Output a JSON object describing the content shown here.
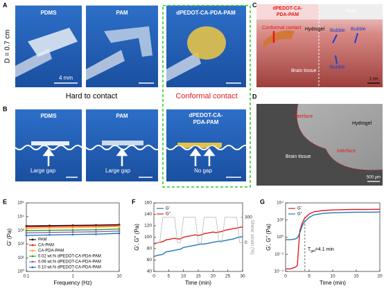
{
  "panel_labels": [
    "A",
    "B",
    "C",
    "D",
    "E",
    "F",
    "G"
  ],
  "panel_a": {
    "axis_label": "D = 0.7 cm",
    "photos": [
      "PDMS",
      "PAM",
      "dPEDOT-CA-PDA-PAM"
    ],
    "scale": "4 mm",
    "left_caption": "Hard to contact",
    "right_caption": "Conformal contact"
  },
  "panel_b": {
    "photos": [
      {
        "title_lines": [
          "PDMS"
        ],
        "caption": "Large gap"
      },
      {
        "title_lines": [
          "PAM"
        ],
        "caption": "Large gap"
      },
      {
        "title_lines": [
          "dPEDOT-CA-",
          "PDA-PAM"
        ],
        "caption": "No gap"
      }
    ]
  },
  "panel_c": {
    "left_header": [
      "dPEDOT-CA-",
      "PDA-PAM"
    ],
    "right_header": "PAM",
    "labels": [
      "Conformal contact",
      "Hydrogel",
      "Bubble",
      "Bubble",
      "Bubble",
      "Brain tissue"
    ],
    "scale": "1 cm"
  },
  "panel_d": {
    "labels": [
      "Interface",
      "Hydrogel",
      "Brain tissue",
      "Interface"
    ],
    "scale": "500 μm"
  },
  "chart_data": [
    {
      "type": "line",
      "xlabel": "Frequency (Hz)",
      "ylabel": "G' (Pa)",
      "xscale": "log",
      "yscale": "log",
      "markers": true,
      "x": [
        0.1,
        0.316,
        1,
        3.16,
        10
      ],
      "xlim": [
        0.1,
        10
      ],
      "xticks": [
        0.1,
        1,
        10
      ],
      "ylim": [
        1,
        100000
      ],
      "yticks": [
        {
          "value": 1,
          "label": "10⁰"
        },
        {
          "value": 10,
          "label": "10¹"
        },
        {
          "value": 100,
          "label": "10²"
        },
        {
          "value": 1000,
          "label": "10³"
        },
        {
          "value": 10000,
          "label": "10⁴"
        },
        {
          "value": 100000,
          "label": "10⁵"
        }
      ],
      "legend": "bottom-left",
      "series": [
        {
          "name": "PAM",
          "color": "#111111",
          "values": [
            2100,
            2200,
            2300,
            2400,
            2600
          ]
        },
        {
          "name": "CA-PAM",
          "color": "#e41a1c",
          "values": [
            1800,
            1900,
            2000,
            2100,
            2300
          ]
        },
        {
          "name": "CA-PDA-PAM",
          "color": "#f5a623",
          "values": [
            1400,
            1500,
            1600,
            1700,
            1900
          ]
        },
        {
          "name": "0.02 wt.% dPEDOT-CA-PDA-PAM",
          "color": "#2ca02c",
          "values": [
            950,
            1000,
            1050,
            1100,
            1250
          ]
        },
        {
          "name": "0.06 wt.% dPEDOT-CA-PDA-PAM",
          "color": "#9b59b6",
          "values": [
            650,
            700,
            740,
            780,
            880
          ]
        },
        {
          "name": "0.10 wt.% dPEDOT-CA-PDA-PAM",
          "color": "#1f77b4",
          "values": [
            430,
            460,
            490,
            520,
            600
          ]
        }
      ]
    },
    {
      "type": "line",
      "xlabel": "Time (min)",
      "ylabel": "G', G'' (Pa)",
      "y2label": "Shear strain (%)",
      "markers": false,
      "x": [
        0,
        1,
        2,
        3,
        4,
        5,
        6,
        7,
        8,
        9,
        10,
        11,
        12,
        13,
        14,
        15,
        16,
        17,
        18,
        19,
        20,
        21,
        22,
        23,
        24,
        25,
        26,
        27,
        28,
        29,
        30
      ],
      "xlim": [
        0,
        30
      ],
      "xticks": [
        0,
        5,
        10,
        15,
        20,
        25,
        30
      ],
      "ylim": [
        40,
        160
      ],
      "yticks": [
        40,
        60,
        80,
        100,
        120,
        140,
        160
      ],
      "y2lim": [
        -340,
        470
      ],
      "y2ticks": [
        0,
        300
      ],
      "legend": "top-left",
      "series": [
        {
          "name": "G'",
          "color": "#1f77b4",
          "values": [
            66,
            68,
            69,
            70,
            74,
            75,
            76,
            77,
            78,
            79,
            82,
            83,
            84,
            85,
            86,
            87,
            88,
            88,
            89,
            90,
            91,
            92,
            93,
            93,
            94,
            95,
            96,
            97,
            99,
            100,
            101
          ]
        },
        {
          "name": "G''",
          "color": "#e41a1c",
          "values": [
            88,
            90,
            91,
            92,
            95,
            96,
            97,
            98,
            97,
            97,
            100,
            101,
            102,
            103,
            104,
            103,
            104,
            106,
            107,
            108,
            109,
            108,
            109,
            110,
            112,
            113,
            114,
            115,
            116,
            117,
            118
          ]
        },
        {
          "axis": "y2",
          "color": "#bbbbbb",
          "values": [
            0,
            0,
            0,
            300,
            300,
            300,
            300,
            300,
            0,
            0,
            300,
            300,
            300,
            300,
            300,
            0,
            0,
            300,
            300,
            300,
            300,
            300,
            0,
            0,
            300,
            300,
            300,
            300,
            300,
            0,
            0
          ]
        }
      ]
    },
    {
      "type": "line",
      "xlabel": "Time (min)",
      "ylabel": "G', G'' (Pa)",
      "yscale": "log",
      "markers": false,
      "x": [
        0,
        1,
        2,
        2.5,
        3,
        3.5,
        4,
        5,
        6,
        8,
        10,
        12,
        14,
        16,
        18,
        20
      ],
      "xlim": [
        0,
        20
      ],
      "xticks": [
        0,
        5,
        10,
        15,
        20
      ],
      "ylim": [
        0.0001,
        10000
      ],
      "yticks": [
        {
          "value": 0.0001,
          "label": "10⁻⁴"
        },
        {
          "value": 0.01,
          "label": "10⁻²"
        },
        {
          "value": 1,
          "label": "10⁰"
        },
        {
          "value": 100,
          "label": "10²"
        },
        {
          "value": 10000,
          "label": "10⁴"
        }
      ],
      "legend": "top-left",
      "gel_time": 4.1,
      "annotation": {
        "symbol": "T",
        "subscript": "gel",
        "rest": "=4.1 min"
      },
      "series": [
        {
          "name": "G'",
          "color": "#e41a1c",
          "values": [
            0.0002,
            0.0002,
            0.0003,
            0.0005,
            5,
            40,
            150,
            500,
            900,
            1300,
            1500,
            1600,
            1700,
            1700,
            1750,
            1800
          ]
        },
        {
          "name": "G''",
          "color": "#1f77b4",
          "values": [
            0.5,
            0.5,
            0.6,
            0.8,
            3,
            20,
            60,
            200,
            400,
            600,
            700,
            750,
            800,
            820,
            830,
            850
          ]
        }
      ]
    }
  ]
}
